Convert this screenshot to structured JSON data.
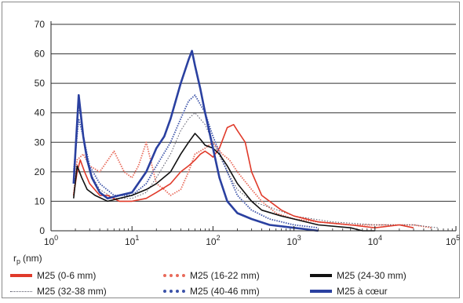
{
  "chart_data": {
    "type": "line",
    "xscale": "log",
    "xlim": [
      1,
      100000
    ],
    "ylim": [
      0,
      70
    ],
    "x_tick_labels": [
      {
        "base": "10",
        "exp": "0"
      },
      {
        "base": "10",
        "exp": "1"
      },
      {
        "base": "10",
        "exp": "2"
      },
      {
        "base": "10",
        "exp": "3"
      },
      {
        "base": "10",
        "exp": "4"
      },
      {
        "base": "10",
        "exp": "5"
      }
    ],
    "y_ticks": [
      0,
      10,
      20,
      30,
      40,
      50,
      60,
      70
    ],
    "grid": "horizontal",
    "xlabel": {
      "main": "r",
      "sub": "p",
      "unit": "(nm)"
    },
    "legend_position": "bottom",
    "series": [
      {
        "name": "M25 (0-6 mm)",
        "color": "#e03a2a",
        "style": "solid",
        "x": [
          1.9,
          2.1,
          2.3,
          2.6,
          3,
          4,
          5,
          7,
          10,
          15,
          20,
          30,
          40,
          50,
          60,
          70,
          80,
          90,
          100,
          120,
          150,
          180,
          200,
          250,
          300,
          400,
          500,
          700,
          1000,
          2000,
          5000,
          10000,
          20000,
          30000
        ],
        "y": [
          12,
          20,
          24,
          20,
          16,
          12,
          12,
          10,
          10,
          11,
          13,
          16,
          20,
          22,
          24,
          26,
          27,
          26,
          25,
          28,
          35,
          36,
          34,
          30,
          20,
          12,
          10,
          7,
          5,
          3,
          2,
          1,
          2,
          1
        ]
      },
      {
        "name": "M25 (16-22 mm)",
        "color": "#e86a5a",
        "style": "dotted-thick",
        "x": [
          1.9,
          2.1,
          2.5,
          3,
          4,
          6,
          8,
          10,
          12,
          15,
          20,
          25,
          30,
          40,
          50,
          60,
          80,
          100,
          130,
          160,
          200,
          300,
          400,
          600,
          1000,
          2000,
          5000,
          10000,
          30000,
          50000
        ],
        "y": [
          12,
          24,
          26,
          22,
          20,
          27,
          20,
          18,
          22,
          30,
          16,
          14,
          12,
          14,
          20,
          26,
          28,
          30,
          26,
          24,
          20,
          14,
          10,
          6,
          4,
          3,
          2,
          2,
          2,
          1
        ]
      },
      {
        "name": "M25 (24-30 mm)",
        "color": "#111111",
        "style": "solid",
        "x": [
          1.9,
          2.1,
          2.4,
          2.8,
          3.5,
          5,
          7,
          10,
          15,
          20,
          30,
          40,
          50,
          60,
          70,
          80,
          100,
          120,
          150,
          200,
          300,
          400,
          700,
          1000,
          2000,
          5000,
          7000,
          10000
        ],
        "y": [
          11,
          22,
          18,
          14,
          12,
          10,
          11,
          12,
          14,
          16,
          20,
          26,
          30,
          33,
          31,
          29,
          28,
          26,
          22,
          16,
          10,
          7,
          5,
          4,
          2,
          1,
          0,
          0
        ]
      },
      {
        "name": "M25 (32-38 mm)",
        "color": "#555566",
        "style": "dotted-thin",
        "x": [
          1.9,
          2.2,
          2.6,
          3,
          4,
          6,
          10,
          15,
          20,
          30,
          40,
          50,
          60,
          80,
          100,
          150,
          200,
          300,
          500,
          1000,
          3000,
          10000,
          30000,
          60000
        ],
        "y": [
          18,
          42,
          30,
          20,
          14,
          11,
          11,
          13,
          18,
          26,
          34,
          38,
          40,
          36,
          30,
          20,
          14,
          10,
          8,
          5,
          3,
          2,
          2,
          1
        ]
      },
      {
        "name": "M25 (40-46 mm)",
        "color": "#3b52a8",
        "style": "dotted-thick",
        "x": [
          1.9,
          2.2,
          2.5,
          3,
          4,
          6,
          10,
          15,
          20,
          30,
          40,
          50,
          60,
          80,
          100,
          150,
          200,
          300,
          500,
          1000,
          2000
        ],
        "y": [
          20,
          38,
          32,
          22,
          16,
          12,
          12,
          16,
          22,
          30,
          38,
          44,
          46,
          40,
          32,
          20,
          12,
          7,
          4,
          2,
          1
        ]
      },
      {
        "name": "M25 à cœur",
        "color": "#2a40a0",
        "style": "solid-thick",
        "x": [
          1.9,
          2.2,
          2.5,
          2.8,
          3.2,
          4,
          5,
          7,
          10,
          15,
          20,
          25,
          30,
          40,
          50,
          55,
          60,
          70,
          80,
          100,
          120,
          150,
          200,
          300,
          500,
          1000,
          2000
        ],
        "y": [
          16,
          46,
          32,
          24,
          18,
          13,
          11,
          12,
          13,
          20,
          28,
          32,
          38,
          50,
          58,
          61,
          56,
          48,
          40,
          28,
          18,
          10,
          6,
          4,
          2,
          1,
          0
        ]
      }
    ]
  }
}
